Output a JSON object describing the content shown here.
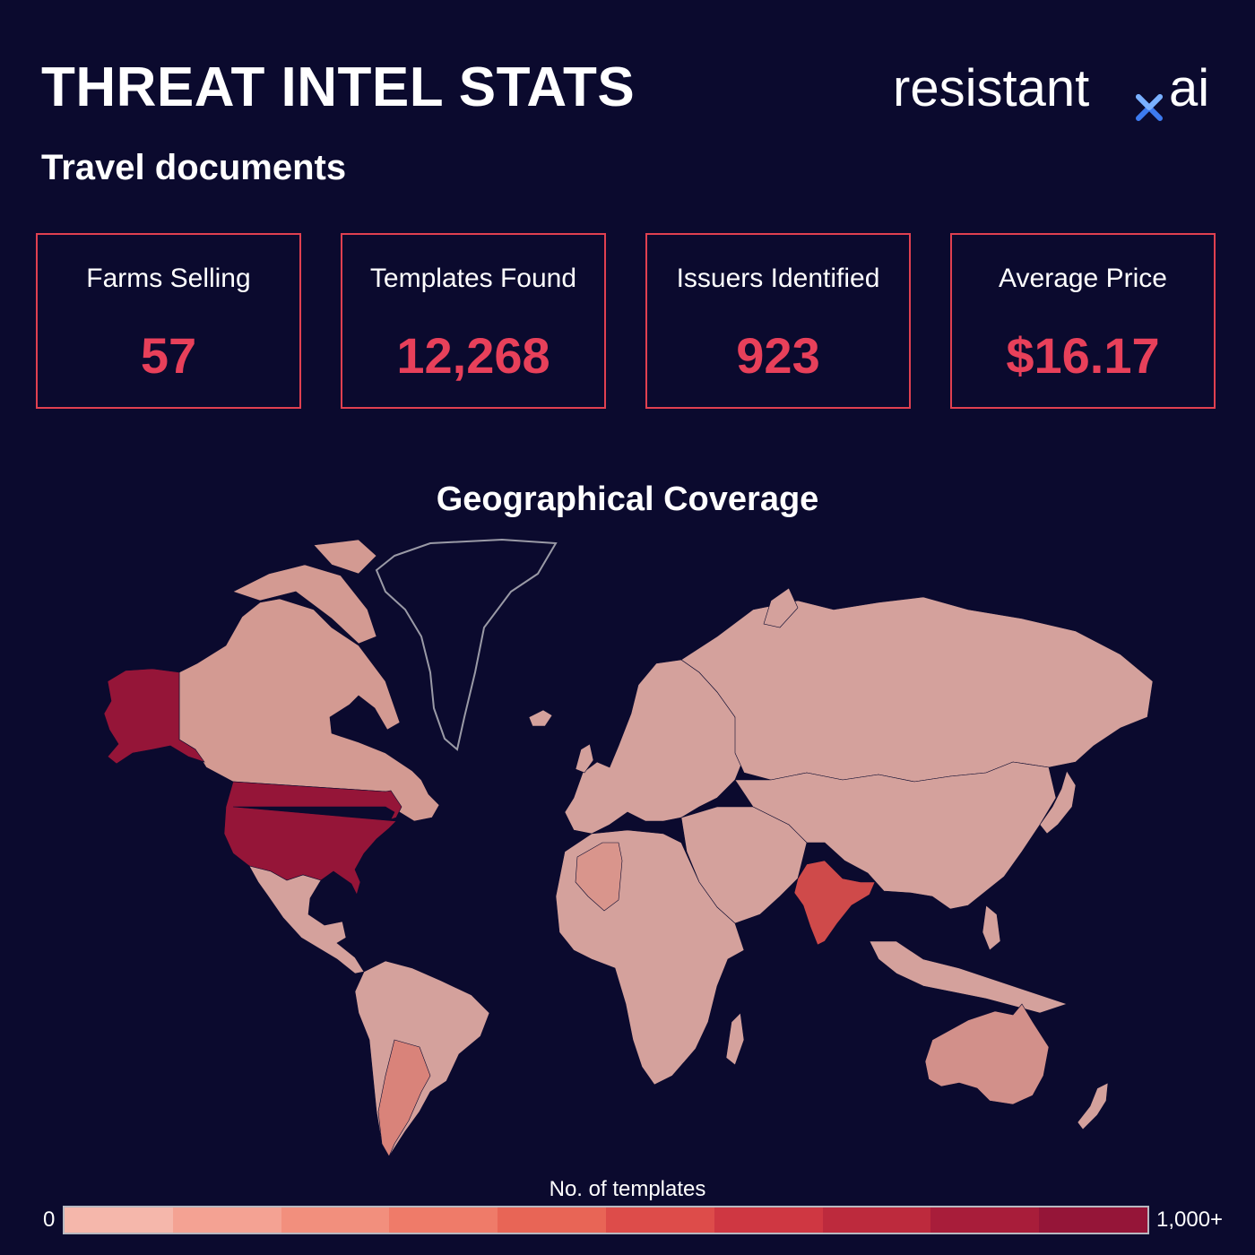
{
  "header": {
    "title": "THREAT INTEL STATS",
    "subtitle": "Travel documents",
    "logo_text_left": "resistant",
    "logo_text_right": "ai",
    "logo_mark": "x-mark-icon"
  },
  "stats": [
    {
      "label": "Farms Selling",
      "value": "57"
    },
    {
      "label": "Templates Found",
      "value": "12,268"
    },
    {
      "label": "Issuers Identified",
      "value": "923"
    },
    {
      "label": "Average Price",
      "value": "$16.17"
    }
  ],
  "map": {
    "title": "Geographical Coverage",
    "legend": {
      "title": "No. of templates",
      "min_label": "0",
      "max_label": "1,000+",
      "colors": [
        "#f5b7ab",
        "#f4a293",
        "#f28f7d",
        "#ef7b69",
        "#e86556",
        "#dd4c4a",
        "#cf3742",
        "#bd2a3d",
        "#a81d3a",
        "#951538"
      ]
    },
    "colors": {
      "background": "#0b0a2e",
      "accent": "#e8405a",
      "greenland_outline": "#9a9aa6"
    },
    "regions": {
      "United States": "#951538",
      "Alaska": "#951538",
      "India": "#cf4a4a",
      "Argentina": "#d9837a",
      "Algeria": "#d9958c",
      "Australia": "#d2908a",
      "Canada": "#d39a92",
      "default": "#d4a19c"
    }
  }
}
